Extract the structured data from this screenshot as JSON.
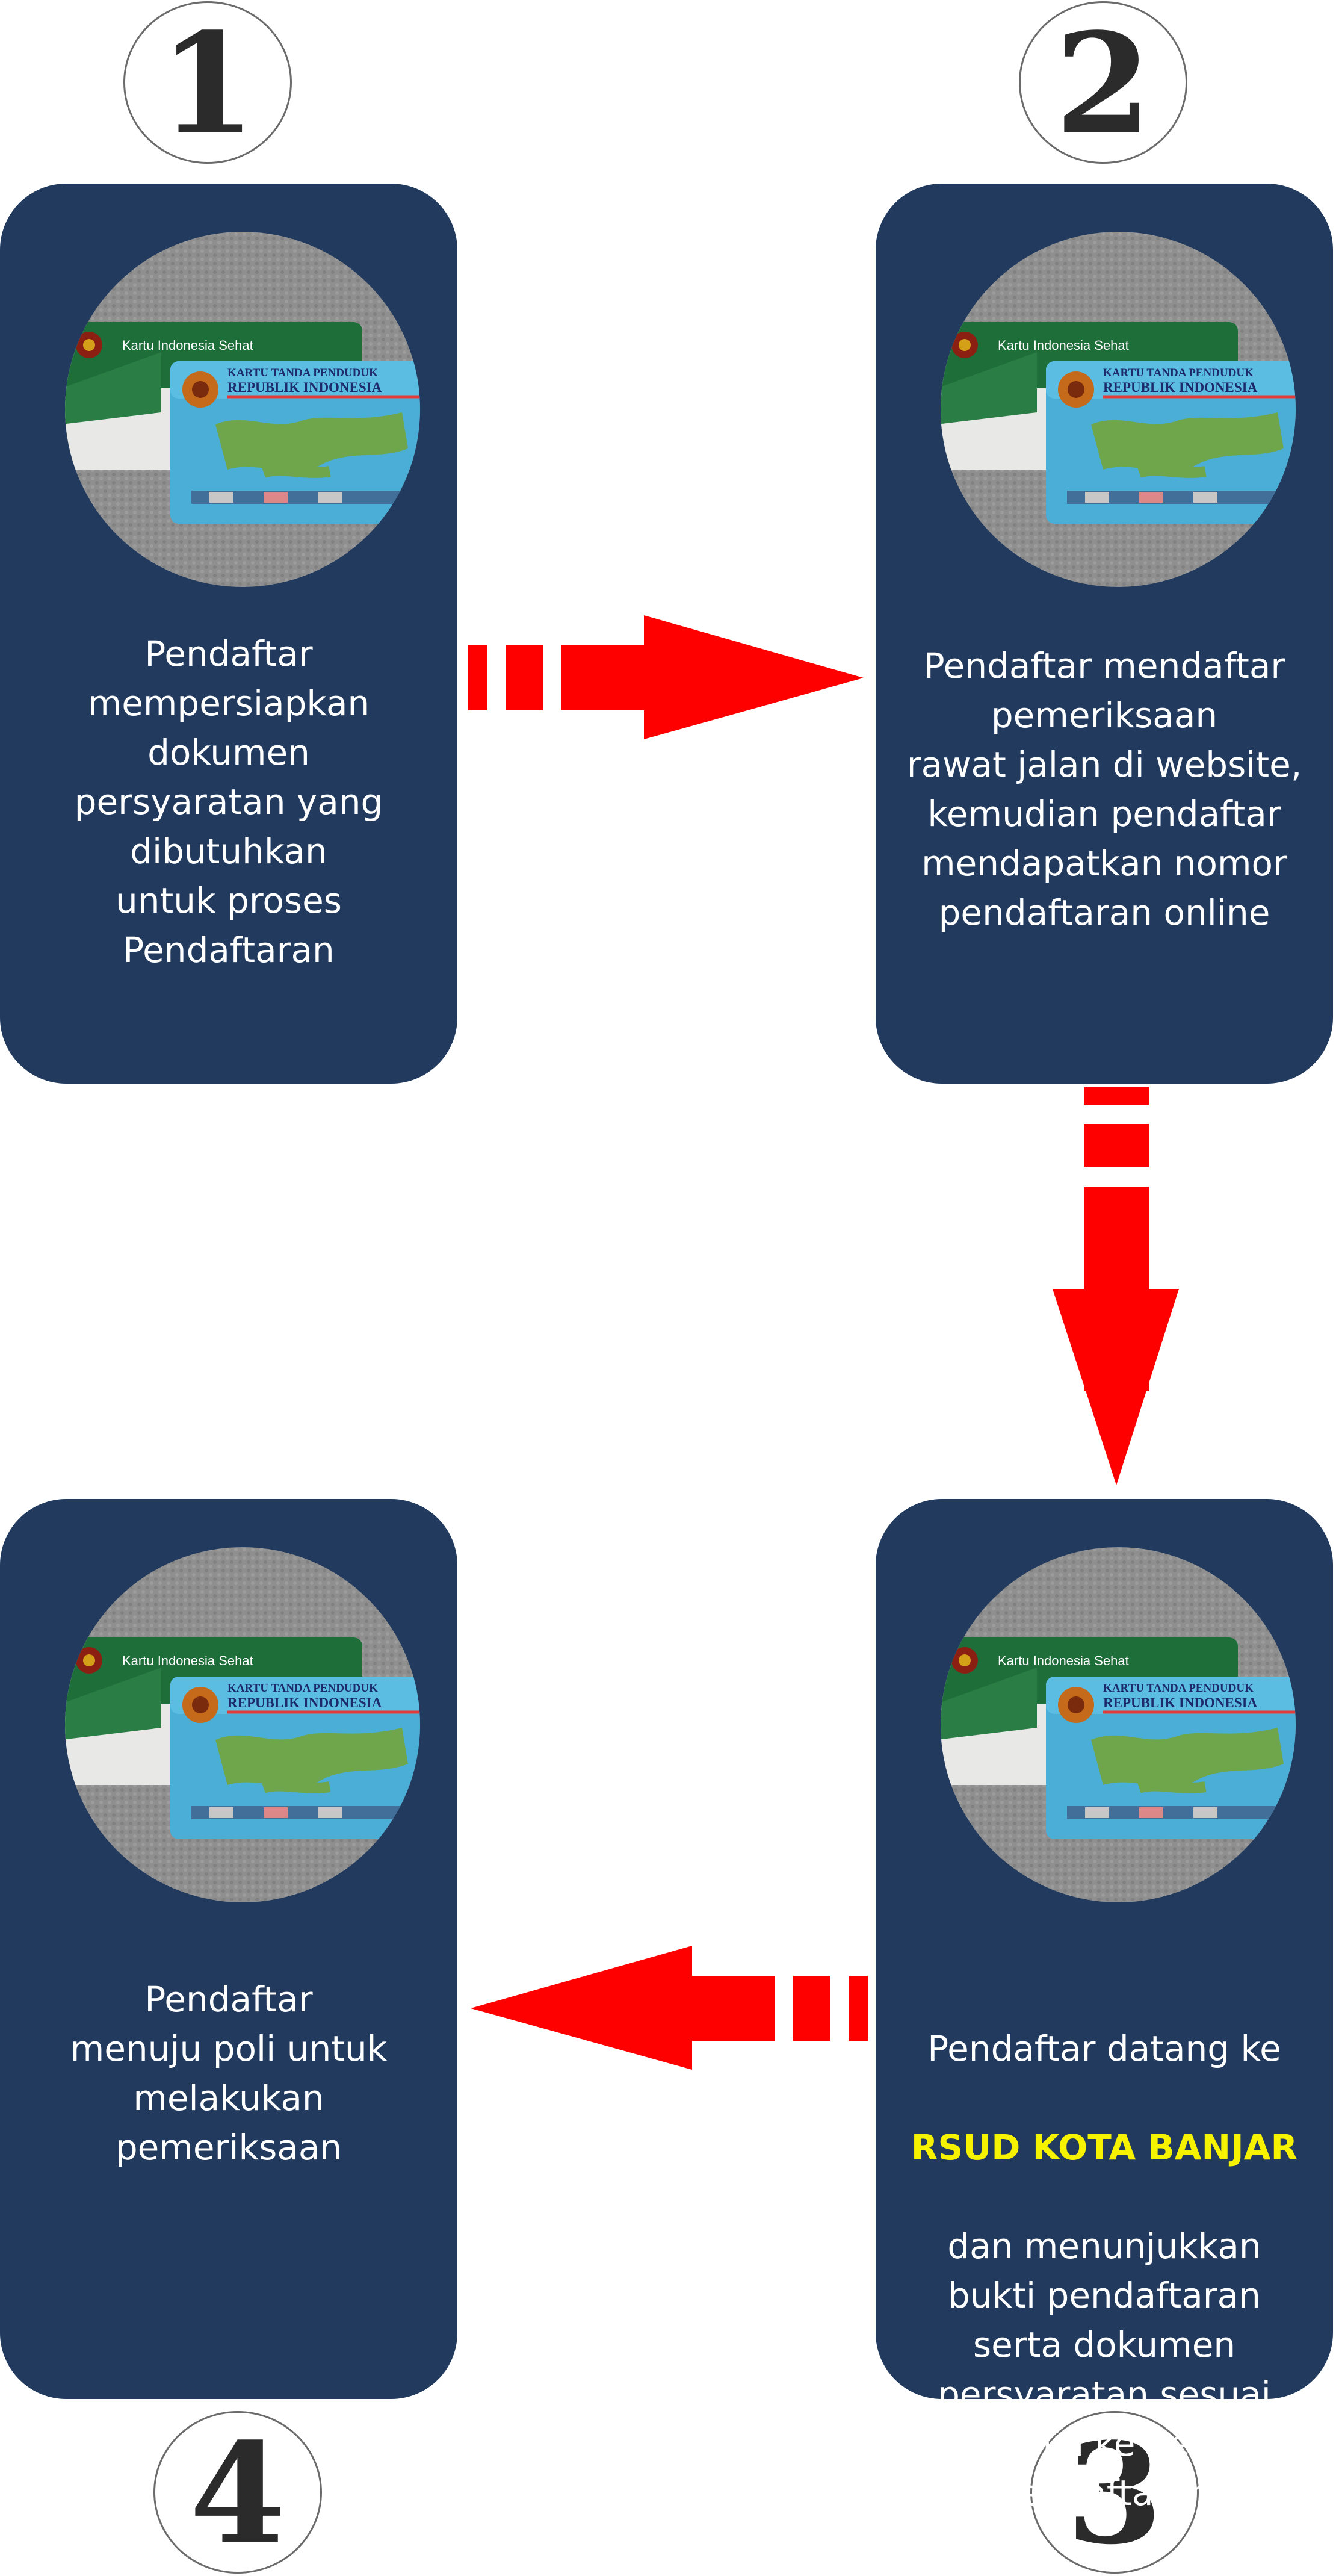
{
  "steps": [
    {
      "number": "1",
      "text": "Pendaftar\nmempersiapkan\ndokumen\npersyaratan yang\ndibutuhkan\nuntuk proses\nPendaftaran"
    },
    {
      "number": "2",
      "text": "Pendaftar mendaftar\npemeriksaan\nrawat jalan di website,\nkemudian pendaftar\nmendapatkan nomor\npendaftaran online"
    },
    {
      "number": "3",
      "text_before": "Pendaftar datang ke",
      "highlight": "RSUD KOTA BANJAR",
      "text_after": "dan menunjukkan\nbukti pendaftaran\nserta dokumen\npersyaratan sesuai\npenjamin ke petugas\npendaftaran"
    },
    {
      "number": "4",
      "text": "Pendaftar\nmenuju poli untuk\nmelakukan\npemeriksaan"
    }
  ],
  "card_image": {
    "kis_label": "Kartu Indonesia Sehat",
    "ktp_title": "KARTU TANDA PENDUDUK",
    "ktp_subtitle": "REPUBLIK INDONESIA"
  },
  "colors": {
    "card_bg": "#213a5e",
    "arrow": "#ff0000",
    "highlight": "#f7f300",
    "text": "#ffffff"
  },
  "arrows": [
    "step1-to-step2",
    "step2-to-step3",
    "step3-to-step4"
  ]
}
